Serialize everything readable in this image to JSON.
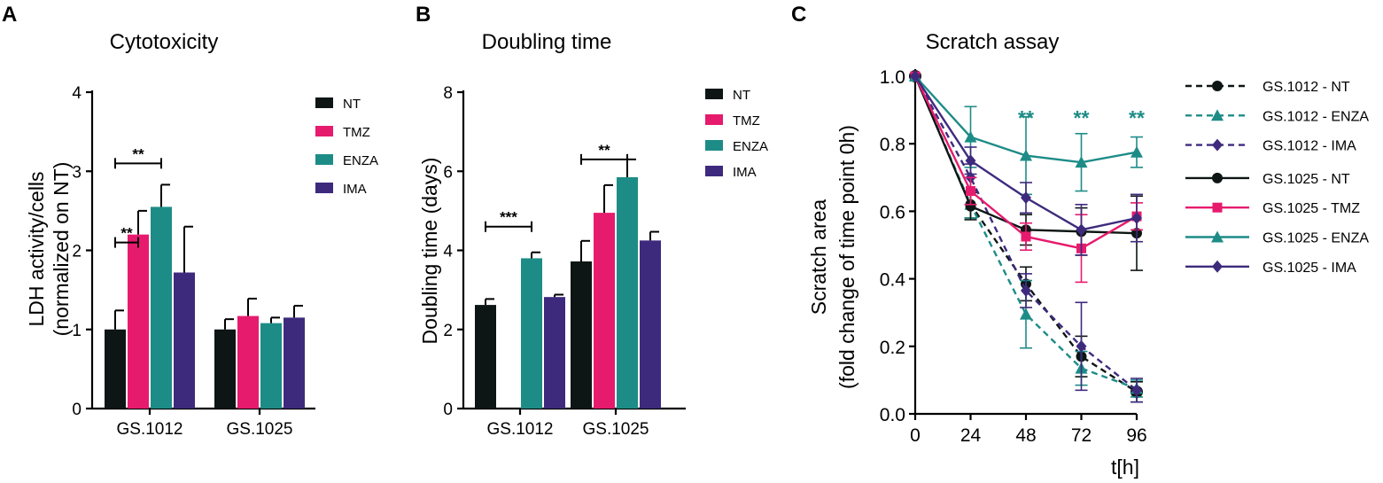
{
  "colors": {
    "NT": "#0d1614",
    "TMZ": "#e61b6e",
    "ENZA": "#1d8c87",
    "IMA": "#3e2a7d",
    "sig_C": "#1d8c87"
  },
  "chart_data": [
    {
      "panel": "A",
      "type": "bar",
      "title": "Cytotoxicity",
      "ylabel_line1": "LDH activity/cells",
      "ylabel_line2": "(normalized on NT)",
      "xlabel": "",
      "ylim": [
        0,
        4
      ],
      "yticks": [
        "0",
        "1",
        "2",
        "3",
        "4"
      ],
      "categories": [
        "GS.1012",
        "GS.1025"
      ],
      "series": [
        {
          "name": "NT",
          "values": [
            1.0,
            1.0
          ],
          "errors": [
            0.24,
            0.13
          ]
        },
        {
          "name": "TMZ",
          "values": [
            2.2,
            1.17
          ],
          "errors": [
            0.3,
            0.22
          ]
        },
        {
          "name": "ENZA",
          "values": [
            2.55,
            1.08
          ],
          "errors": [
            0.28,
            0.07
          ]
        },
        {
          "name": "IMA",
          "values": [
            1.72,
            1.15
          ],
          "errors": [
            0.58,
            0.15
          ]
        }
      ],
      "legend": [
        "NT",
        "TMZ",
        "ENZA",
        "IMA"
      ],
      "significance": [
        {
          "category": "GS.1012",
          "from": "NT",
          "to": "TMZ",
          "label": "**",
          "y": 2.1
        },
        {
          "category": "GS.1012",
          "from": "NT",
          "to": "ENZA",
          "label": "**",
          "y": 3.1
        }
      ]
    },
    {
      "panel": "B",
      "type": "bar",
      "title": "Doubling time",
      "ylabel_line1": "Doubling time (days)",
      "xlabel": "",
      "ylim": [
        0,
        8
      ],
      "yticks": [
        "0",
        "2",
        "4",
        "6",
        "8"
      ],
      "categories": [
        "GS.1012",
        "GS.1025"
      ],
      "series": [
        {
          "name": "NT",
          "values": [
            2.62,
            3.72
          ],
          "errors": [
            0.15,
            0.52
          ]
        },
        {
          "name": "TMZ",
          "values": [
            null,
            4.95
          ],
          "errors": [
            null,
            0.7
          ]
        },
        {
          "name": "ENZA",
          "values": [
            3.8,
            5.85
          ],
          "errors": [
            0.15,
            0.45
          ]
        },
        {
          "name": "IMA",
          "values": [
            2.82,
            4.25
          ],
          "errors": [
            0.06,
            0.22
          ]
        }
      ],
      "legend": [
        "NT",
        "TMZ",
        "ENZA",
        "IMA"
      ],
      "significance": [
        {
          "category": "GS.1012",
          "from": "NT",
          "to": "ENZA",
          "label": "***",
          "y": 4.6
        },
        {
          "category": "GS.1025",
          "from": "NT",
          "to": "ENZA",
          "label": "**",
          "y": 6.3
        }
      ]
    },
    {
      "panel": "C",
      "type": "line",
      "title": "Scratch assay",
      "ylabel_line1": "Scratch area",
      "ylabel_line2": "(fold change of time point 0h)",
      "xlabel": "t[h]",
      "xlim": [
        0,
        96
      ],
      "ylim": [
        0,
        1.0
      ],
      "xticks": [
        "0",
        "24",
        "48",
        "72",
        "96"
      ],
      "yticks": [
        "0.0",
        "0.2",
        "0.4",
        "0.6",
        "0.8",
        "1.0"
      ],
      "x": [
        0,
        24,
        48,
        72,
        96
      ],
      "series": [
        {
          "name": "GS.1012 - NT",
          "color": "NT",
          "dash": true,
          "marker": "circle",
          "values": [
            1.0,
            0.62,
            0.385,
            0.17,
            0.065
          ],
          "errors": [
            0,
            0.04,
            0.05,
            0.06,
            0.03
          ]
        },
        {
          "name": "GS.1012 - ENZA",
          "color": "ENZA",
          "dash": true,
          "marker": "triangle",
          "values": [
            1.0,
            0.62,
            0.295,
            0.135,
            0.075
          ],
          "errors": [
            0,
            0.04,
            0.1,
            0.05,
            0.025
          ]
        },
        {
          "name": "GS.1012 - IMA",
          "color": "IMA",
          "dash": true,
          "marker": "diamond",
          "values": [
            1.0,
            0.7,
            0.365,
            0.2,
            0.07
          ],
          "errors": [
            0,
            0.04,
            0.05,
            0.13,
            0.035
          ]
        },
        {
          "name": "GS.1025 - NT",
          "color": "NT",
          "dash": false,
          "marker": "circle",
          "values": [
            1.0,
            0.615,
            0.545,
            0.54,
            0.535
          ],
          "errors": [
            0,
            0.04,
            0.045,
            0.07,
            0.11
          ]
        },
        {
          "name": "GS.1025 - TMZ",
          "color": "TMZ",
          "dash": false,
          "marker": "square",
          "values": [
            1.0,
            0.66,
            0.525,
            0.49,
            0.585
          ],
          "errors": [
            0,
            0.04,
            0.04,
            0.1,
            0.04
          ]
        },
        {
          "name": "GS.1025 - ENZA",
          "color": "ENZA",
          "dash": false,
          "marker": "triangle",
          "values": [
            1.0,
            0.82,
            0.765,
            0.745,
            0.775
          ],
          "errors": [
            0,
            0.09,
            0.115,
            0.085,
            0.045
          ]
        },
        {
          "name": "GS.1025 - IMA",
          "color": "IMA",
          "dash": false,
          "marker": "diamond",
          "values": [
            1.0,
            0.75,
            0.64,
            0.545,
            0.58
          ],
          "errors": [
            0,
            0.04,
            0.045,
            0.075,
            0.07
          ]
        }
      ],
      "annotations": [
        {
          "x": 48,
          "label": "**"
        },
        {
          "x": 72,
          "label": "**"
        },
        {
          "x": 96,
          "label": "**"
        }
      ]
    }
  ]
}
